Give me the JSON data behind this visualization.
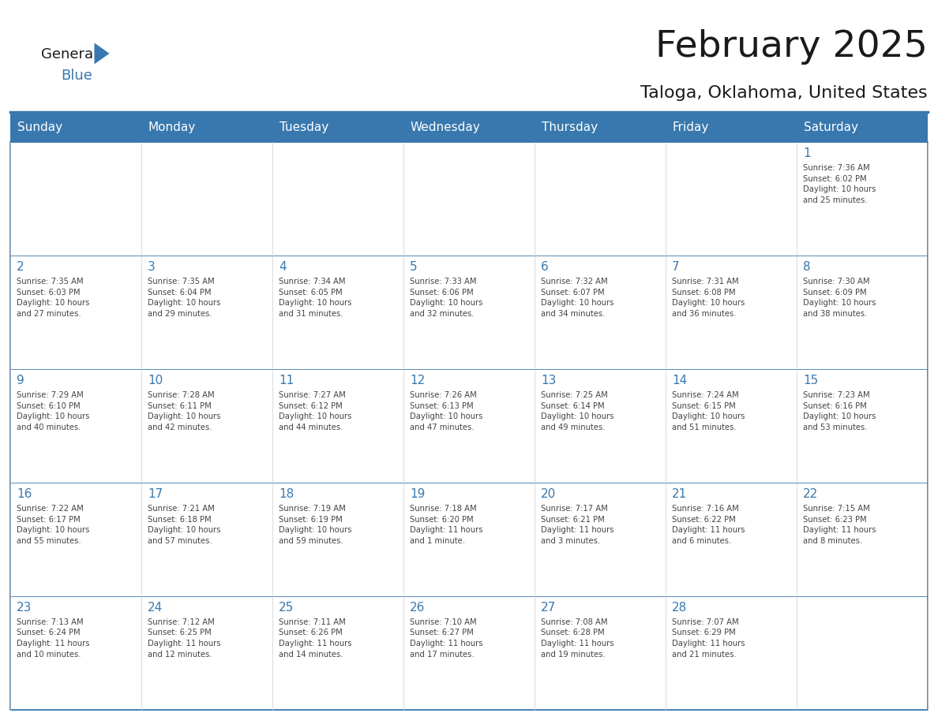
{
  "title": "February 2025",
  "subtitle": "Taloga, Oklahoma, United States",
  "header_bg_color": "#3878ae",
  "header_text_color": "#ffffff",
  "grid_line_color": "#3878ae",
  "day_number_color": "#3878ae",
  "cell_text_color": "#444444",
  "days_of_week": [
    "Sunday",
    "Monday",
    "Tuesday",
    "Wednesday",
    "Thursday",
    "Friday",
    "Saturday"
  ],
  "weeks": [
    [
      {
        "day": null,
        "info": null
      },
      {
        "day": null,
        "info": null
      },
      {
        "day": null,
        "info": null
      },
      {
        "day": null,
        "info": null
      },
      {
        "day": null,
        "info": null
      },
      {
        "day": null,
        "info": null
      },
      {
        "day": "1",
        "info": "Sunrise: 7:36 AM\nSunset: 6:02 PM\nDaylight: 10 hours\nand 25 minutes."
      }
    ],
    [
      {
        "day": "2",
        "info": "Sunrise: 7:35 AM\nSunset: 6:03 PM\nDaylight: 10 hours\nand 27 minutes."
      },
      {
        "day": "3",
        "info": "Sunrise: 7:35 AM\nSunset: 6:04 PM\nDaylight: 10 hours\nand 29 minutes."
      },
      {
        "day": "4",
        "info": "Sunrise: 7:34 AM\nSunset: 6:05 PM\nDaylight: 10 hours\nand 31 minutes."
      },
      {
        "day": "5",
        "info": "Sunrise: 7:33 AM\nSunset: 6:06 PM\nDaylight: 10 hours\nand 32 minutes."
      },
      {
        "day": "6",
        "info": "Sunrise: 7:32 AM\nSunset: 6:07 PM\nDaylight: 10 hours\nand 34 minutes."
      },
      {
        "day": "7",
        "info": "Sunrise: 7:31 AM\nSunset: 6:08 PM\nDaylight: 10 hours\nand 36 minutes."
      },
      {
        "day": "8",
        "info": "Sunrise: 7:30 AM\nSunset: 6:09 PM\nDaylight: 10 hours\nand 38 minutes."
      }
    ],
    [
      {
        "day": "9",
        "info": "Sunrise: 7:29 AM\nSunset: 6:10 PM\nDaylight: 10 hours\nand 40 minutes."
      },
      {
        "day": "10",
        "info": "Sunrise: 7:28 AM\nSunset: 6:11 PM\nDaylight: 10 hours\nand 42 minutes."
      },
      {
        "day": "11",
        "info": "Sunrise: 7:27 AM\nSunset: 6:12 PM\nDaylight: 10 hours\nand 44 minutes."
      },
      {
        "day": "12",
        "info": "Sunrise: 7:26 AM\nSunset: 6:13 PM\nDaylight: 10 hours\nand 47 minutes."
      },
      {
        "day": "13",
        "info": "Sunrise: 7:25 AM\nSunset: 6:14 PM\nDaylight: 10 hours\nand 49 minutes."
      },
      {
        "day": "14",
        "info": "Sunrise: 7:24 AM\nSunset: 6:15 PM\nDaylight: 10 hours\nand 51 minutes."
      },
      {
        "day": "15",
        "info": "Sunrise: 7:23 AM\nSunset: 6:16 PM\nDaylight: 10 hours\nand 53 minutes."
      }
    ],
    [
      {
        "day": "16",
        "info": "Sunrise: 7:22 AM\nSunset: 6:17 PM\nDaylight: 10 hours\nand 55 minutes."
      },
      {
        "day": "17",
        "info": "Sunrise: 7:21 AM\nSunset: 6:18 PM\nDaylight: 10 hours\nand 57 minutes."
      },
      {
        "day": "18",
        "info": "Sunrise: 7:19 AM\nSunset: 6:19 PM\nDaylight: 10 hours\nand 59 minutes."
      },
      {
        "day": "19",
        "info": "Sunrise: 7:18 AM\nSunset: 6:20 PM\nDaylight: 11 hours\nand 1 minute."
      },
      {
        "day": "20",
        "info": "Sunrise: 7:17 AM\nSunset: 6:21 PM\nDaylight: 11 hours\nand 3 minutes."
      },
      {
        "day": "21",
        "info": "Sunrise: 7:16 AM\nSunset: 6:22 PM\nDaylight: 11 hours\nand 6 minutes."
      },
      {
        "day": "22",
        "info": "Sunrise: 7:15 AM\nSunset: 6:23 PM\nDaylight: 11 hours\nand 8 minutes."
      }
    ],
    [
      {
        "day": "23",
        "info": "Sunrise: 7:13 AM\nSunset: 6:24 PM\nDaylight: 11 hours\nand 10 minutes."
      },
      {
        "day": "24",
        "info": "Sunrise: 7:12 AM\nSunset: 6:25 PM\nDaylight: 11 hours\nand 12 minutes."
      },
      {
        "day": "25",
        "info": "Sunrise: 7:11 AM\nSunset: 6:26 PM\nDaylight: 11 hours\nand 14 minutes."
      },
      {
        "day": "26",
        "info": "Sunrise: 7:10 AM\nSunset: 6:27 PM\nDaylight: 11 hours\nand 17 minutes."
      },
      {
        "day": "27",
        "info": "Sunrise: 7:08 AM\nSunset: 6:28 PM\nDaylight: 11 hours\nand 19 minutes."
      },
      {
        "day": "28",
        "info": "Sunrise: 7:07 AM\nSunset: 6:29 PM\nDaylight: 11 hours\nand 21 minutes."
      },
      {
        "day": null,
        "info": null
      }
    ]
  ]
}
